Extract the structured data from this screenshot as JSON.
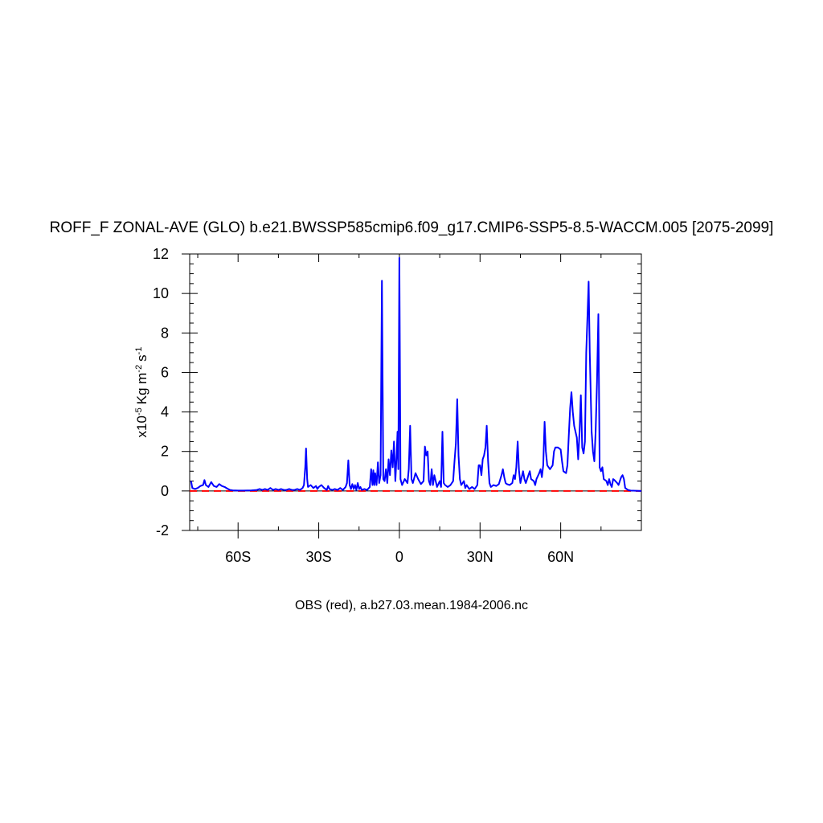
{
  "chart_data": {
    "type": "line",
    "title": "ROFF_F ZONAL-AVE (GLO) b.e21.BWSSP585cmip6.f09_g17.CMIP6-SSP5-8.5-WACCM.005 [2075-2099]",
    "ylabel": {
      "scale": "x10",
      "scale_exp": "-5",
      "unit": "Kg m",
      "unit_exp1": "-2",
      "unit2": "s",
      "unit_exp2": "-1"
    },
    "caption": "OBS (red), a.b27.03.mean.1984-2006.nc",
    "xlim": [
      -78,
      90
    ],
    "ylim": [
      -2,
      12
    ],
    "x_ticks": [
      {
        "value": -60,
        "label": "60S"
      },
      {
        "value": -30,
        "label": "30S"
      },
      {
        "value": 0,
        "label": "0"
      },
      {
        "value": 30,
        "label": "30N"
      },
      {
        "value": 60,
        "label": "60N"
      }
    ],
    "y_ticks": [
      {
        "value": -2,
        "label": "-2"
      },
      {
        "value": 0,
        "label": "0"
      },
      {
        "value": 2,
        "label": "2"
      },
      {
        "value": 4,
        "label": "4"
      },
      {
        "value": 6,
        "label": "6"
      },
      {
        "value": 8,
        "label": "8"
      },
      {
        "value": 10,
        "label": "10"
      },
      {
        "value": 12,
        "label": "12"
      }
    ],
    "reference_line": {
      "y": 0,
      "color": "#000000"
    },
    "series": [
      {
        "color": "#0000ff",
        "style": "solid",
        "points": [
          [
            -77.5,
            0.5
          ],
          [
            -77,
            0.15
          ],
          [
            -76,
            0.1
          ],
          [
            -75,
            0.15
          ],
          [
            -74,
            0.25
          ],
          [
            -73,
            0.3
          ],
          [
            -72.5,
            0.55
          ],
          [
            -72,
            0.3
          ],
          [
            -71,
            0.2
          ],
          [
            -70,
            0.45
          ],
          [
            -69,
            0.25
          ],
          [
            -68,
            0.2
          ],
          [
            -67,
            0.35
          ],
          [
            -66,
            0.25
          ],
          [
            -65,
            0.2
          ],
          [
            -64,
            0.12
          ],
          [
            -63,
            0.05
          ],
          [
            -62,
            0.03
          ],
          [
            -60,
            0.02
          ],
          [
            -58,
            0.02
          ],
          [
            -55,
            0.03
          ],
          [
            -53,
            0.05
          ],
          [
            -52,
            0.1
          ],
          [
            -51,
            0.05
          ],
          [
            -50,
            0.1
          ],
          [
            -49,
            0.05
          ],
          [
            -48,
            0.15
          ],
          [
            -47,
            0.05
          ],
          [
            -46,
            0.1
          ],
          [
            -45,
            0.05
          ],
          [
            -44,
            0.1
          ],
          [
            -43,
            0.05
          ],
          [
            -42,
            0.05
          ],
          [
            -41,
            0.1
          ],
          [
            -40,
            0.05
          ],
          [
            -39,
            0.05
          ],
          [
            -38,
            0.1
          ],
          [
            -37,
            0.05
          ],
          [
            -36,
            0.15
          ],
          [
            -35.5,
            0.3
          ],
          [
            -35,
            1.2
          ],
          [
            -34.7,
            2.15
          ],
          [
            -34.3,
            0.6
          ],
          [
            -34,
            0.2
          ],
          [
            -33,
            0.3
          ],
          [
            -32,
            0.15
          ],
          [
            -31,
            0.25
          ],
          [
            -30.5,
            0.1
          ],
          [
            -30,
            0.2
          ],
          [
            -29,
            0.3
          ],
          [
            -28,
            0.15
          ],
          [
            -27,
            0.05
          ],
          [
            -26.5,
            0.25
          ],
          [
            -26,
            0.1
          ],
          [
            -25,
            0.05
          ],
          [
            -24,
            0.1
          ],
          [
            -23,
            0.05
          ],
          [
            -22,
            0.15
          ],
          [
            -21,
            0.05
          ],
          [
            -20,
            0.2
          ],
          [
            -19.5,
            0.4
          ],
          [
            -19,
            1.55
          ],
          [
            -18.5,
            0.3
          ],
          [
            -18,
            0.1
          ],
          [
            -17.5,
            0.35
          ],
          [
            -17,
            0.1
          ],
          [
            -16.5,
            0.3
          ],
          [
            -16,
            0.05
          ],
          [
            -15.5,
            0.4
          ],
          [
            -15,
            0.1
          ],
          [
            -14.5,
            0.2
          ],
          [
            -14,
            0.05
          ],
          [
            -13,
            0.1
          ],
          [
            -12,
            0.05
          ],
          [
            -11,
            0.2
          ],
          [
            -10.5,
            1.1
          ],
          [
            -10,
            0.3
          ],
          [
            -9.7,
            1.05
          ],
          [
            -9.3,
            0.3
          ],
          [
            -9,
            0.9
          ],
          [
            -8.5,
            0.3
          ],
          [
            -8,
            1.45
          ],
          [
            -7.5,
            0.4
          ],
          [
            -7,
            0.8
          ],
          [
            -6.5,
            10.65
          ],
          [
            -6,
            0.6
          ],
          [
            -5.5,
            0.5
          ],
          [
            -5,
            1.1
          ],
          [
            -4.5,
            0.4
          ],
          [
            -4,
            1.6
          ],
          [
            -3.5,
            0.8
          ],
          [
            -3,
            2.05
          ],
          [
            -2.5,
            1.2
          ],
          [
            -2,
            2.5
          ],
          [
            -1.5,
            0.5
          ],
          [
            -1,
            1.9
          ],
          [
            -0.7,
            3.0
          ],
          [
            -0.4,
            1.1
          ],
          [
            0,
            11.8
          ],
          [
            0.4,
            0.6
          ],
          [
            1,
            0.3
          ],
          [
            2,
            0.6
          ],
          [
            3,
            0.4
          ],
          [
            3.5,
            1.1
          ],
          [
            4,
            3.3
          ],
          [
            4.5,
            0.6
          ],
          [
            5,
            0.4
          ],
          [
            6,
            0.9
          ],
          [
            7,
            0.6
          ],
          [
            8,
            0.35
          ],
          [
            9,
            0.5
          ],
          [
            9.5,
            2.25
          ],
          [
            10,
            1.8
          ],
          [
            10.5,
            2.0
          ],
          [
            11,
            0.5
          ],
          [
            11.5,
            0.3
          ],
          [
            12,
            1.1
          ],
          [
            12.5,
            0.3
          ],
          [
            13,
            0.8
          ],
          [
            14,
            0.2
          ],
          [
            15,
            0.5
          ],
          [
            15.5,
            0.2
          ],
          [
            16,
            3.0
          ],
          [
            16.5,
            0.4
          ],
          [
            17,
            0.3
          ],
          [
            18,
            0.2
          ],
          [
            19,
            0.3
          ],
          [
            20,
            0.5
          ],
          [
            20.5,
            1.5
          ],
          [
            21,
            2.4
          ],
          [
            21.5,
            4.65
          ],
          [
            22,
            1.8
          ],
          [
            22.5,
            0.6
          ],
          [
            23,
            0.3
          ],
          [
            24,
            0.5
          ],
          [
            24.5,
            0.15
          ],
          [
            25,
            0.3
          ],
          [
            26,
            0.1
          ],
          [
            27,
            0.2
          ],
          [
            28,
            0.1
          ],
          [
            29,
            0.3
          ],
          [
            29.5,
            1.3
          ],
          [
            30,
            1.3
          ],
          [
            30.5,
            0.8
          ],
          [
            31,
            1.6
          ],
          [
            31.5,
            1.8
          ],
          [
            32,
            2.2
          ],
          [
            32.5,
            3.3
          ],
          [
            33,
            1.5
          ],
          [
            33.5,
            0.4
          ],
          [
            34,
            0.2
          ],
          [
            35,
            0.3
          ],
          [
            36,
            0.25
          ],
          [
            37,
            0.35
          ],
          [
            38,
            0.8
          ],
          [
            38.5,
            1.1
          ],
          [
            39,
            0.7
          ],
          [
            39.5,
            0.4
          ],
          [
            40,
            0.35
          ],
          [
            41,
            0.3
          ],
          [
            42,
            0.4
          ],
          [
            42.5,
            0.8
          ],
          [
            43,
            0.6
          ],
          [
            43.5,
            1.2
          ],
          [
            44,
            2.5
          ],
          [
            44.5,
            1.0
          ],
          [
            45,
            0.4
          ],
          [
            46,
            1.0
          ],
          [
            46.5,
            0.6
          ],
          [
            47,
            0.4
          ],
          [
            48,
            0.8
          ],
          [
            48.5,
            1.0
          ],
          [
            49,
            0.6
          ],
          [
            50,
            0.5
          ],
          [
            50.5,
            0.3
          ],
          [
            51,
            0.6
          ],
          [
            52,
            0.9
          ],
          [
            52.5,
            1.1
          ],
          [
            53,
            0.7
          ],
          [
            53.5,
            1.3
          ],
          [
            54,
            3.5
          ],
          [
            54.5,
            2.0
          ],
          [
            55,
            1.3
          ],
          [
            56,
            1.1
          ],
          [
            57,
            1.3
          ],
          [
            57.5,
            2.0
          ],
          [
            58,
            2.2
          ],
          [
            59,
            2.2
          ],
          [
            60,
            2.1
          ],
          [
            60.5,
            1.5
          ],
          [
            61,
            1.0
          ],
          [
            62,
            0.9
          ],
          [
            62.5,
            1.3
          ],
          [
            63,
            2.8
          ],
          [
            63.5,
            4.2
          ],
          [
            64,
            5.0
          ],
          [
            64.5,
            4.0
          ],
          [
            65,
            3.3
          ],
          [
            66,
            2.7
          ],
          [
            66.5,
            1.6
          ],
          [
            67,
            3.0
          ],
          [
            67.5,
            4.85
          ],
          [
            68,
            2.2
          ],
          [
            68.5,
            1.9
          ],
          [
            69,
            2.5
          ],
          [
            69.5,
            7.0
          ],
          [
            70,
            9.0
          ],
          [
            70.4,
            10.6
          ],
          [
            70.8,
            7.0
          ],
          [
            71.5,
            3.0
          ],
          [
            72,
            2.0
          ],
          [
            72.5,
            1.5
          ],
          [
            73,
            3.0
          ],
          [
            73.5,
            5.5
          ],
          [
            74,
            8.95
          ],
          [
            74.5,
            1.2
          ],
          [
            75,
            1.0
          ],
          [
            75.5,
            1.2
          ],
          [
            76,
            0.6
          ],
          [
            77,
            0.5
          ],
          [
            77.5,
            0.3
          ],
          [
            78,
            0.6
          ],
          [
            78.5,
            0.35
          ],
          [
            79,
            0.2
          ],
          [
            79.5,
            0.6
          ],
          [
            80,
            0.55
          ],
          [
            81,
            0.4
          ],
          [
            81.5,
            0.3
          ],
          [
            82,
            0.5
          ],
          [
            82.5,
            0.7
          ],
          [
            83,
            0.8
          ],
          [
            83.5,
            0.6
          ],
          [
            84,
            0.15
          ],
          [
            85,
            0.05
          ],
          [
            86,
            0.02
          ],
          [
            88,
            0.01
          ],
          [
            90,
            0.0
          ]
        ]
      },
      {
        "color": "#ff0000",
        "style": "dashed",
        "points": [
          [
            -78,
            0.0
          ],
          [
            90,
            0.0
          ]
        ]
      }
    ]
  }
}
